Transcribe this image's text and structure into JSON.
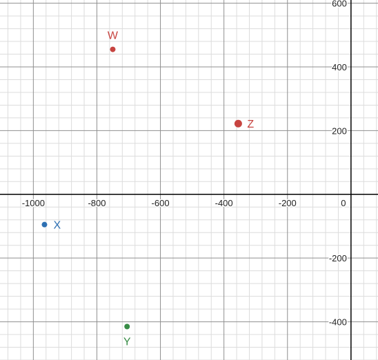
{
  "chart_data": {
    "type": "scatter",
    "title": "",
    "xlabel": "",
    "ylabel": "",
    "xlim": [
      -1105,
      85
    ],
    "ylim": [
      -520,
      610
    ],
    "grid": true,
    "minor_grid_step": 40,
    "major_grid_step": 200,
    "x_ticks": [
      {
        "value": -1000,
        "label": "-1000"
      },
      {
        "value": -800,
        "label": "-800"
      },
      {
        "value": -600,
        "label": "-600"
      },
      {
        "value": -400,
        "label": "-400"
      },
      {
        "value": -200,
        "label": "-200"
      },
      {
        "value": 0,
        "label": "0"
      }
    ],
    "y_ticks": [
      {
        "value": 600,
        "label": "600"
      },
      {
        "value": 400,
        "label": "400"
      },
      {
        "value": 200,
        "label": "200"
      },
      {
        "value": -200,
        "label": "-200"
      },
      {
        "value": -400,
        "label": "-400"
      }
    ],
    "points": [
      {
        "label": "W",
        "x": -750,
        "y": 455,
        "color": "#c74440",
        "label_position": "above",
        "radius": 4
      },
      {
        "label": "Z",
        "x": -355,
        "y": 222,
        "color": "#c74440",
        "label_position": "right",
        "radius": 5.5
      },
      {
        "label": "X",
        "x": -965,
        "y": -95,
        "color": "#2d70b3",
        "label_position": "right",
        "radius": 4
      },
      {
        "label": "Y",
        "x": -705,
        "y": -415,
        "color": "#388c46",
        "label_position": "below",
        "radius": 4
      }
    ]
  }
}
